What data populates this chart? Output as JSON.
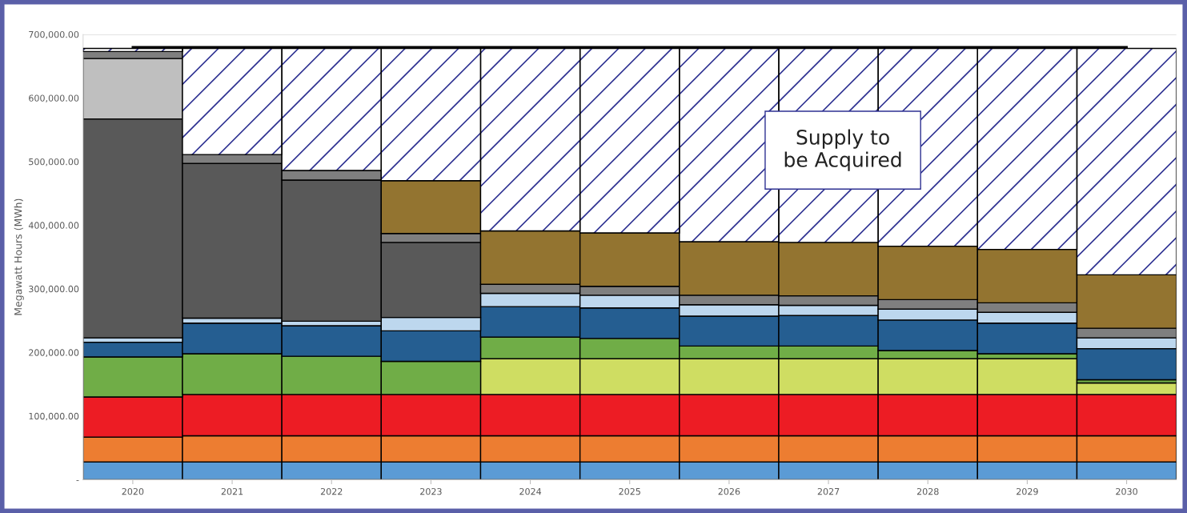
{
  "chart_data": {
    "type": "bar",
    "stacked": true,
    "categories": [
      "2020",
      "2021",
      "2022",
      "2023",
      "2024",
      "2025",
      "2026",
      "2027",
      "2028",
      "2029",
      "2030"
    ],
    "ylabel": "Megawatt Hours (MWh)",
    "ylim": [
      0,
      700000
    ],
    "yticks": [
      {
        "value": 0,
        "label": "-"
      },
      {
        "value": 100000,
        "label": "100,000.00"
      },
      {
        "value": 200000,
        "label": "200,000.00"
      },
      {
        "value": 300000,
        "label": "300,000.00"
      },
      {
        "value": 400000,
        "label": "400,000.00"
      },
      {
        "value": 500000,
        "label": "500,000.00"
      },
      {
        "value": 600000,
        "label": "600,000.00"
      },
      {
        "value": 700000,
        "label": "700,000.00"
      }
    ],
    "grid": "y",
    "series": [
      {
        "color": "#5b9bd5",
        "values": [
          28000,
          28000,
          28000,
          28000,
          28000,
          28000,
          28000,
          28000,
          28000,
          28000,
          28000
        ]
      },
      {
        "color": "#ed7d31",
        "values": [
          39000,
          41000,
          41000,
          41000,
          41000,
          41000,
          41000,
          41000,
          41000,
          41000,
          41000
        ]
      },
      {
        "color": "#ed1c24",
        "values": [
          63000,
          65000,
          65000,
          65000,
          65000,
          65000,
          65000,
          65000,
          65000,
          65000,
          65000
        ]
      },
      {
        "color": "#cfdd62",
        "values": [
          null,
          null,
          null,
          null,
          56000,
          56000,
          56000,
          56000,
          56000,
          56000,
          18000
        ]
      },
      {
        "color": "#70ad47",
        "values": [
          63000,
          64000,
          60000,
          52000,
          34000,
          32000,
          20000,
          20000,
          13000,
          8000,
          5000
        ]
      },
      {
        "color": "#255e91",
        "values": [
          23000,
          48000,
          48000,
          48000,
          48000,
          48000,
          47000,
          48000,
          48000,
          48000,
          49000
        ]
      },
      {
        "color": "#bdd7ee",
        "values": [
          7000,
          8000,
          7000,
          21000,
          21000,
          20000,
          18000,
          16000,
          17000,
          17000,
          17000
        ]
      },
      {
        "color": "#595959",
        "values": [
          344000,
          243000,
          222000,
          118000,
          null,
          null,
          null,
          null,
          null,
          null,
          null
        ]
      },
      {
        "color": "#bfbfbf",
        "values": [
          95000,
          null,
          null,
          null,
          null,
          null,
          null,
          null,
          null,
          null,
          null
        ]
      },
      {
        "color": "#7f7f7f",
        "values": [
          11000,
          14000,
          15000,
          14000,
          14000,
          14000,
          15000,
          15000,
          15000,
          15000,
          15000
        ]
      },
      {
        "color": "#937430",
        "values": [
          null,
          null,
          null,
          83000,
          84000,
          84000,
          84000,
          84000,
          84000,
          84000,
          84000
        ]
      },
      {
        "name": "Supply to be Acquired",
        "color": "#2e3192",
        "values": [
          5000,
          167000,
          192000,
          208000,
          287000,
          290000,
          304000,
          305000,
          311000,
          316000,
          356000
        ]
      },
      {
        "type": "line",
        "color": "#000000",
        "values": [
          680000,
          680000,
          680000,
          680000,
          680000,
          680000,
          680000,
          680000,
          680000,
          680000,
          680000
        ]
      }
    ]
  }
}
